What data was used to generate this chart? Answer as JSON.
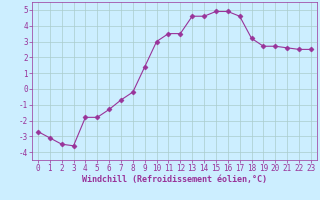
{
  "x": [
    0,
    1,
    2,
    3,
    4,
    5,
    6,
    7,
    8,
    9,
    10,
    11,
    12,
    13,
    14,
    15,
    16,
    17,
    18,
    19,
    20,
    21,
    22,
    23
  ],
  "y": [
    -2.7,
    -3.1,
    -3.5,
    -3.6,
    -1.8,
    -1.8,
    -1.3,
    -0.7,
    -0.2,
    1.4,
    3.0,
    3.5,
    3.5,
    4.6,
    4.6,
    4.9,
    4.9,
    4.6,
    3.2,
    2.7,
    2.7,
    2.6,
    2.5,
    2.5
  ],
  "line_color": "#993399",
  "marker": "D",
  "marker_size": 2.5,
  "bg_color": "#cceeff",
  "grid_color": "#aacccc",
  "xlabel": "Windchill (Refroidissement éolien,°C)",
  "ylabel": "",
  "xlim": [
    -0.5,
    23.5
  ],
  "ylim": [
    -4.5,
    5.5
  ],
  "yticks": [
    -4,
    -3,
    -2,
    -1,
    0,
    1,
    2,
    3,
    4,
    5
  ],
  "xticks": [
    0,
    1,
    2,
    3,
    4,
    5,
    6,
    7,
    8,
    9,
    10,
    11,
    12,
    13,
    14,
    15,
    16,
    17,
    18,
    19,
    20,
    21,
    22,
    23
  ],
  "tick_color": "#993399",
  "label_color": "#993399",
  "axis_color": "#993399",
  "font_size": 5.5,
  "label_font_size": 6.0
}
